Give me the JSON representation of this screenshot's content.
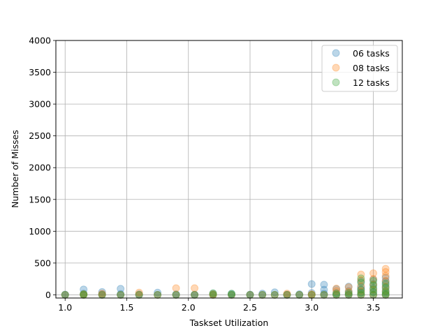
{
  "chart_data": {
    "type": "scatter",
    "title": "",
    "xlabel": "Taskset Utilization",
    "ylabel": "Number of Misses",
    "xlim": [
      0.925,
      3.735
    ],
    "ylim": [
      -50,
      4000
    ],
    "xticks": [
      1.0,
      1.5,
      2.0,
      2.5,
      3.0,
      3.5
    ],
    "xtick_labels": [
      "1.0",
      "1.5",
      "2.0",
      "2.5",
      "3.0",
      "3.5"
    ],
    "yticks": [
      0,
      500,
      1000,
      1500,
      2000,
      2500,
      3000,
      3500,
      4000
    ],
    "ytick_labels": [
      "0",
      "500",
      "1000",
      "1500",
      "2000",
      "2500",
      "3000",
      "3500",
      "4000"
    ],
    "grid": true,
    "legend_position": "top-right",
    "marker_alpha": 0.3,
    "series": [
      {
        "name": "06 tasks",
        "color": "#1f77b4",
        "points": [
          [
            1.0,
            0
          ],
          [
            1.0,
            5
          ],
          [
            1.15,
            0
          ],
          [
            1.15,
            20
          ],
          [
            1.15,
            85
          ],
          [
            1.3,
            0
          ],
          [
            1.3,
            10
          ],
          [
            1.3,
            45
          ],
          [
            1.45,
            0
          ],
          [
            1.45,
            15
          ],
          [
            1.45,
            95
          ],
          [
            1.6,
            0
          ],
          [
            1.6,
            10
          ],
          [
            1.75,
            0
          ],
          [
            1.75,
            35
          ],
          [
            1.9,
            0
          ],
          [
            1.9,
            10
          ],
          [
            2.05,
            0
          ],
          [
            2.05,
            5
          ],
          [
            2.2,
            0
          ],
          [
            2.2,
            20
          ],
          [
            2.35,
            0
          ],
          [
            2.35,
            15
          ],
          [
            2.5,
            0
          ],
          [
            2.5,
            5
          ],
          [
            2.6,
            0
          ],
          [
            2.6,
            20
          ],
          [
            2.7,
            0
          ],
          [
            2.7,
            40
          ],
          [
            2.8,
            0
          ],
          [
            2.8,
            5
          ],
          [
            2.9,
            0
          ],
          [
            2.9,
            10
          ],
          [
            3.0,
            0
          ],
          [
            3.0,
            30
          ],
          [
            3.0,
            170
          ],
          [
            3.1,
            0
          ],
          [
            3.1,
            20
          ],
          [
            3.1,
            80
          ],
          [
            3.1,
            160
          ],
          [
            3.2,
            0
          ],
          [
            3.2,
            30
          ],
          [
            3.2,
            90
          ],
          [
            3.3,
            0
          ],
          [
            3.3,
            20
          ],
          [
            3.3,
            60
          ],
          [
            3.3,
            130
          ],
          [
            3.4,
            0
          ],
          [
            3.4,
            40
          ],
          [
            3.4,
            90
          ],
          [
            3.4,
            120
          ],
          [
            3.4,
            210
          ],
          [
            3.5,
            0
          ],
          [
            3.5,
            50
          ],
          [
            3.5,
            110
          ],
          [
            3.5,
            170
          ],
          [
            3.5,
            240
          ],
          [
            3.6,
            0
          ],
          [
            3.6,
            40
          ],
          [
            3.6,
            100
          ],
          [
            3.6,
            160
          ],
          [
            3.6,
            210
          ],
          [
            3.6,
            270
          ]
        ]
      },
      {
        "name": "08 tasks",
        "color": "#ff7f0e",
        "points": [
          [
            1.0,
            0
          ],
          [
            1.15,
            0
          ],
          [
            1.15,
            10
          ],
          [
            1.3,
            0
          ],
          [
            1.3,
            20
          ],
          [
            1.45,
            0
          ],
          [
            1.6,
            0
          ],
          [
            1.6,
            35
          ],
          [
            1.75,
            0
          ],
          [
            1.9,
            0
          ],
          [
            1.9,
            105
          ],
          [
            2.05,
            0
          ],
          [
            2.05,
            105
          ],
          [
            2.2,
            0
          ],
          [
            2.2,
            10
          ],
          [
            2.35,
            0
          ],
          [
            2.5,
            0
          ],
          [
            2.6,
            0
          ],
          [
            2.7,
            0
          ],
          [
            2.8,
            0
          ],
          [
            2.8,
            20
          ],
          [
            2.9,
            0
          ],
          [
            3.0,
            0
          ],
          [
            3.0,
            10
          ],
          [
            3.1,
            0
          ],
          [
            3.2,
            0
          ],
          [
            3.2,
            60
          ],
          [
            3.2,
            100
          ],
          [
            3.3,
            0
          ],
          [
            3.3,
            50
          ],
          [
            3.3,
            120
          ],
          [
            3.4,
            0
          ],
          [
            3.4,
            60
          ],
          [
            3.4,
            140
          ],
          [
            3.4,
            230
          ],
          [
            3.4,
            320
          ],
          [
            3.5,
            0
          ],
          [
            3.5,
            80
          ],
          [
            3.5,
            160
          ],
          [
            3.5,
            250
          ],
          [
            3.5,
            340
          ],
          [
            3.6,
            0
          ],
          [
            3.6,
            60
          ],
          [
            3.6,
            130
          ],
          [
            3.6,
            220
          ],
          [
            3.6,
            300
          ],
          [
            3.6,
            360
          ],
          [
            3.6,
            410
          ]
        ]
      },
      {
        "name": "12 tasks",
        "color": "#2ca02c",
        "points": [
          [
            1.0,
            0
          ],
          [
            1.15,
            0
          ],
          [
            1.15,
            10
          ],
          [
            1.3,
            0
          ],
          [
            1.45,
            0
          ],
          [
            1.6,
            0
          ],
          [
            1.75,
            0
          ],
          [
            1.9,
            0
          ],
          [
            2.05,
            0
          ],
          [
            2.2,
            0
          ],
          [
            2.2,
            25
          ],
          [
            2.35,
            0
          ],
          [
            2.35,
            20
          ],
          [
            2.5,
            0
          ],
          [
            2.6,
            0
          ],
          [
            2.7,
            0
          ],
          [
            2.8,
            0
          ],
          [
            2.9,
            0
          ],
          [
            3.0,
            0
          ],
          [
            3.1,
            0
          ],
          [
            3.2,
            0
          ],
          [
            3.2,
            20
          ],
          [
            3.3,
            0
          ],
          [
            3.3,
            30
          ],
          [
            3.4,
            0
          ],
          [
            3.4,
            30
          ],
          [
            3.4,
            80
          ],
          [
            3.4,
            190
          ],
          [
            3.4,
            260
          ],
          [
            3.5,
            0
          ],
          [
            3.5,
            40
          ],
          [
            3.5,
            90
          ],
          [
            3.5,
            150
          ],
          [
            3.5,
            220
          ],
          [
            3.6,
            0
          ],
          [
            3.6,
            20
          ],
          [
            3.6,
            60
          ],
          [
            3.6,
            120
          ],
          [
            3.6,
            180
          ]
        ]
      }
    ]
  }
}
